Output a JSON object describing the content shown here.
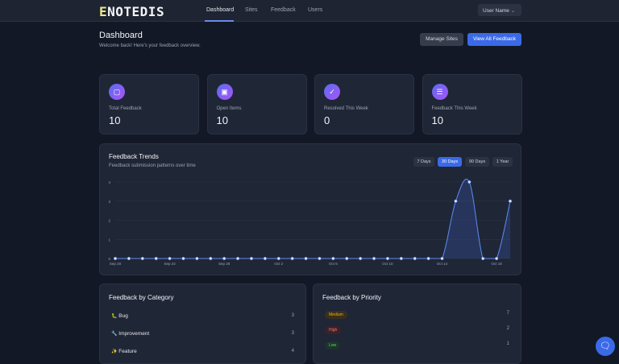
{
  "nav": {
    "logo": "NOTEDIS",
    "logo_mark": "E",
    "links": [
      "Dashboard",
      "Sites",
      "Feedback",
      "Users"
    ],
    "active": "Dashboard",
    "user": "User Name"
  },
  "header": {
    "title": "Dashboard",
    "subtitle": "Welcome back! Here's your feedback overview.",
    "manage_sites": "Manage Sites",
    "view_all": "View All Feedback"
  },
  "stats": [
    {
      "label": "Total Feedback",
      "value": "10",
      "icon": "message-square-icon"
    },
    {
      "label": "Open Items",
      "value": "10",
      "icon": "message-dots-icon"
    },
    {
      "label": "Resolved This Week",
      "value": "0",
      "icon": "check-circle-icon"
    },
    {
      "label": "Feedback This Week",
      "value": "10",
      "icon": "message-lines-icon"
    }
  ],
  "trends": {
    "title": "Feedback Trends",
    "subtitle": "Feedback submission patterns over time",
    "ranges": [
      "7 Days",
      "30 Days",
      "90 Days",
      "1 Year"
    ],
    "active_range": "30 Days"
  },
  "chart_data": {
    "type": "area",
    "x": [
      "Sep 20",
      "Sep 21",
      "Sep 22",
      "Sep 23",
      "Sep 24",
      "Sep 25",
      "Sep 26",
      "Sep 27",
      "Sep 28",
      "Sep 29",
      "Sep 30",
      "Oct 1",
      "Oct 2",
      "Oct 3",
      "Oct 4",
      "Oct 5",
      "Oct 6",
      "Oct 7",
      "Oct 8",
      "Oct 9",
      "Oct 10",
      "Oct 11",
      "Oct 12",
      "Oct 13",
      "Oct 14",
      "Oct 15",
      "Oct 16",
      "Oct 17",
      "Oct 18",
      "Oct 19"
    ],
    "values": [
      0,
      0,
      0,
      0,
      0,
      0,
      0,
      0,
      0,
      0,
      0,
      0,
      0,
      0,
      0,
      0,
      0,
      0,
      0,
      0,
      0,
      0,
      0,
      0,
      0,
      3,
      4,
      0,
      0,
      3
    ],
    "x_ticks": [
      "Sep 20",
      "Sep 24",
      "Sep 28",
      "Oct 2",
      "Oct 6",
      "Oct 10",
      "Oct 14",
      "Oct 18"
    ],
    "y_ticks": [
      "0",
      "1",
      "2",
      "3",
      "4"
    ],
    "ylim": [
      0,
      4
    ],
    "grid": true,
    "color": "#5b8def"
  },
  "category": {
    "title": "Feedback by Category",
    "items": [
      {
        "icon": "🐛",
        "label": "Bug",
        "count": "3"
      },
      {
        "icon": "🔧",
        "label": "Improvement",
        "count": "3"
      },
      {
        "icon": "✨",
        "label": "Feature",
        "count": "4"
      }
    ]
  },
  "priority": {
    "title": "Feedback by Priority",
    "items": [
      {
        "label": "Medium",
        "count": "7",
        "color": "#eab308",
        "bg": "#3a2f1e"
      },
      {
        "label": "High",
        "count": "2",
        "color": "#f87171",
        "bg": "#3b2229"
      },
      {
        "label": "Low",
        "count": "1",
        "color": "#4ade80",
        "bg": "#1d3529"
      }
    ]
  }
}
